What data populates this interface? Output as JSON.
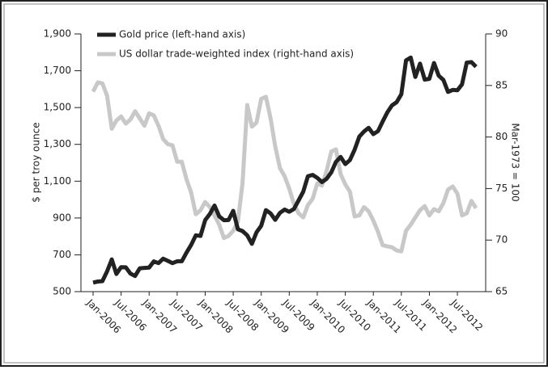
{
  "chart_data": {
    "type": "line",
    "categories": [
      "Jan-2006",
      null,
      null,
      null,
      null,
      null,
      "Jul-2006",
      null,
      null,
      null,
      null,
      null,
      "Jan-2007",
      null,
      null,
      null,
      null,
      null,
      "Jul-2007",
      null,
      null,
      null,
      null,
      null,
      "Jan-2008",
      null,
      null,
      null,
      null,
      null,
      "Jul-2008",
      null,
      null,
      null,
      null,
      null,
      "Jan-2009",
      null,
      null,
      null,
      null,
      null,
      "Jul-2009",
      null,
      null,
      null,
      null,
      null,
      "Jan-2010",
      null,
      null,
      null,
      null,
      null,
      "Jul-2010",
      null,
      null,
      null,
      null,
      null,
      "Jan-2011",
      null,
      null,
      null,
      null,
      null,
      "Jul-2011",
      null,
      null,
      null,
      null,
      null,
      "Jan-2012",
      null,
      null,
      null,
      null,
      null,
      "Jul-2012",
      null,
      null,
      null,
      null
    ],
    "series": [
      {
        "name": "Gold price (left-hand axis)",
        "color": "#222222",
        "values": [
          549,
          555,
          557,
          610,
          675,
          596,
          633,
          632,
          598,
          585,
          627,
          629,
          631,
          664,
          655,
          679,
          667,
          655,
          665,
          665,
          712,
          754,
          806,
          803,
          889,
          922,
          968,
          909,
          888,
          889,
          939,
          839,
          829,
          806,
          760,
          822,
          858,
          943,
          925,
          890,
          928,
          946,
          934,
          949,
          996,
          1043,
          1127,
          1134,
          1118,
          1095,
          1113,
          1148,
          1205,
          1232,
          1193,
          1215,
          1271,
          1342,
          1370,
          1390,
          1356,
          1372,
          1424,
          1474,
          1512,
          1529,
          1572,
          1756,
          1772,
          1666,
          1739,
          1652,
          1656,
          1742,
          1673,
          1650,
          1585,
          1596,
          1594,
          1626,
          1744,
          1747,
          1722
        ]
      },
      {
        "name": "US dollar trade-weighted index (right-hand axis)",
        "color": "#c8c8c8",
        "axis": "y2",
        "values": [
          84.4,
          85.3,
          85.2,
          84.0,
          80.8,
          81.6,
          82.0,
          81.3,
          81.7,
          82.5,
          81.8,
          81.1,
          82.3,
          82.1,
          81.1,
          79.8,
          79.3,
          79.2,
          77.6,
          77.6,
          75.9,
          74.6,
          72.5,
          72.9,
          73.7,
          73.2,
          72.4,
          71.5,
          70.2,
          70.4,
          70.9,
          71.8,
          75.5,
          83.1,
          81.0,
          81.4,
          83.7,
          83.9,
          81.8,
          79.1,
          77.0,
          76.2,
          75.0,
          73.5,
          72.6,
          72.2,
          73.4,
          74.0,
          75.5,
          75.3,
          76.7,
          78.6,
          78.8,
          76.4,
          75.4,
          74.7,
          72.3,
          72.4,
          73.2,
          72.8,
          71.9,
          70.8,
          69.5,
          69.4,
          69.3,
          69.0,
          68.9,
          70.9,
          71.5,
          72.2,
          72.9,
          73.3,
          72.4,
          73.0,
          72.8,
          73.6,
          74.9,
          75.2,
          74.5,
          72.4,
          72.6,
          73.8,
          73.1
        ]
      }
    ],
    "y_label": "$ per troy ounce",
    "y2_label": "Mar-1973 = 100",
    "ylim": [
      500,
      1900
    ],
    "yticks": [
      500,
      700,
      900,
      {
        "value": 1100,
        "label": "1,100"
      },
      {
        "value": 1300,
        "label": "1,300"
      },
      {
        "value": 1500,
        "label": "1,500"
      },
      {
        "value": 1700,
        "label": "1,700"
      },
      {
        "value": 1900,
        "label": "1,900"
      }
    ],
    "y2lim": [
      65,
      90
    ],
    "y2ticks": [
      65,
      70,
      75,
      80,
      85,
      90
    ],
    "legend": "upper left",
    "grid": false
  }
}
